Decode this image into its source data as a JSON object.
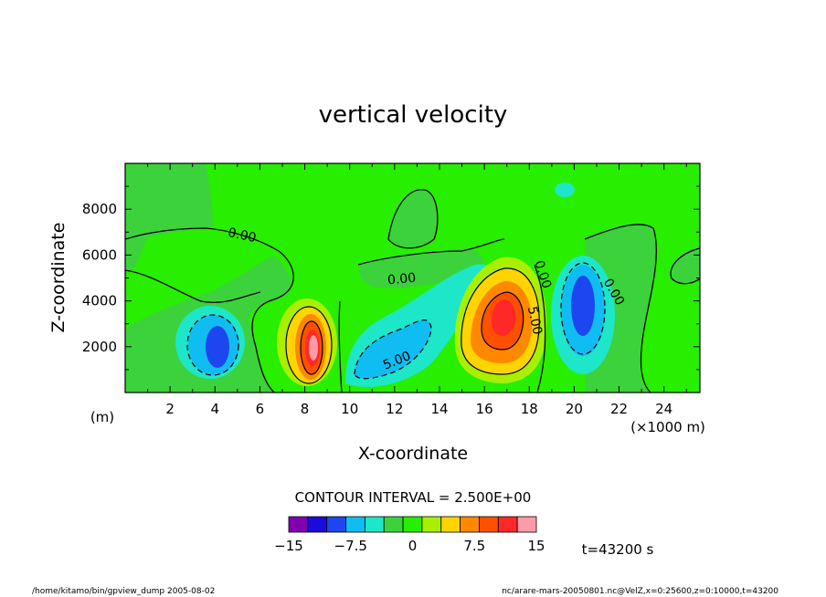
{
  "chart_data": {
    "type": "heatmap",
    "title": "vertical velocity",
    "xlabel": "X-coordinate",
    "ylabel": "Z-coordinate",
    "x_unit_label": "(×1000 m)",
    "y_unit_label": "(m)",
    "xlim": [
      0,
      25.6
    ],
    "ylim": [
      0,
      10000
    ],
    "x_ticks": [
      "2",
      "4",
      "6",
      "8",
      "10",
      "12",
      "14",
      "16",
      "18",
      "20",
      "22",
      "24"
    ],
    "y_ticks": [
      "2000",
      "4000",
      "6000",
      "8000"
    ],
    "contour_interval_text": "CONTOUR INTERVAL = 2.500E+00",
    "contour_labels": [
      "0.00",
      "0.00",
      "0.00",
      "0.00",
      "5.00",
      "5.00"
    ],
    "colorbar": {
      "colors": [
        "#8000b0",
        "#1a0adc",
        "#1e46f0",
        "#0fbdf2",
        "#1ee6c8",
        "#3cd23c",
        "#28ee00",
        "#a8f000",
        "#ffd400",
        "#ff8800",
        "#ff5000",
        "#ff2828",
        "#ff9aa8"
      ],
      "tick_labels": [
        "−15",
        "−7.5",
        "0",
        "7.5",
        "15"
      ],
      "range": [
        -15,
        15
      ]
    },
    "time_label": "t=43200 s",
    "footer_left": "/home/kitamo/bin/gpview_dump   2005-08-02",
    "footer_right": "nc/arare-mars-20050801.nc@VelZ,x=0:25600,z=0:10000,t=43200",
    "cells": [
      {
        "x": 4.3,
        "z": 2100,
        "value": -10
      },
      {
        "x": 8.5,
        "z": 2400,
        "value": 14
      },
      {
        "x": 12.5,
        "z": 2200,
        "value": -5
      },
      {
        "x": 16.8,
        "z": 3300,
        "value": 13
      },
      {
        "x": 20.5,
        "z": 3600,
        "value": -10
      },
      {
        "x": 19.8,
        "z": 8700,
        "value": -3
      }
    ]
  }
}
